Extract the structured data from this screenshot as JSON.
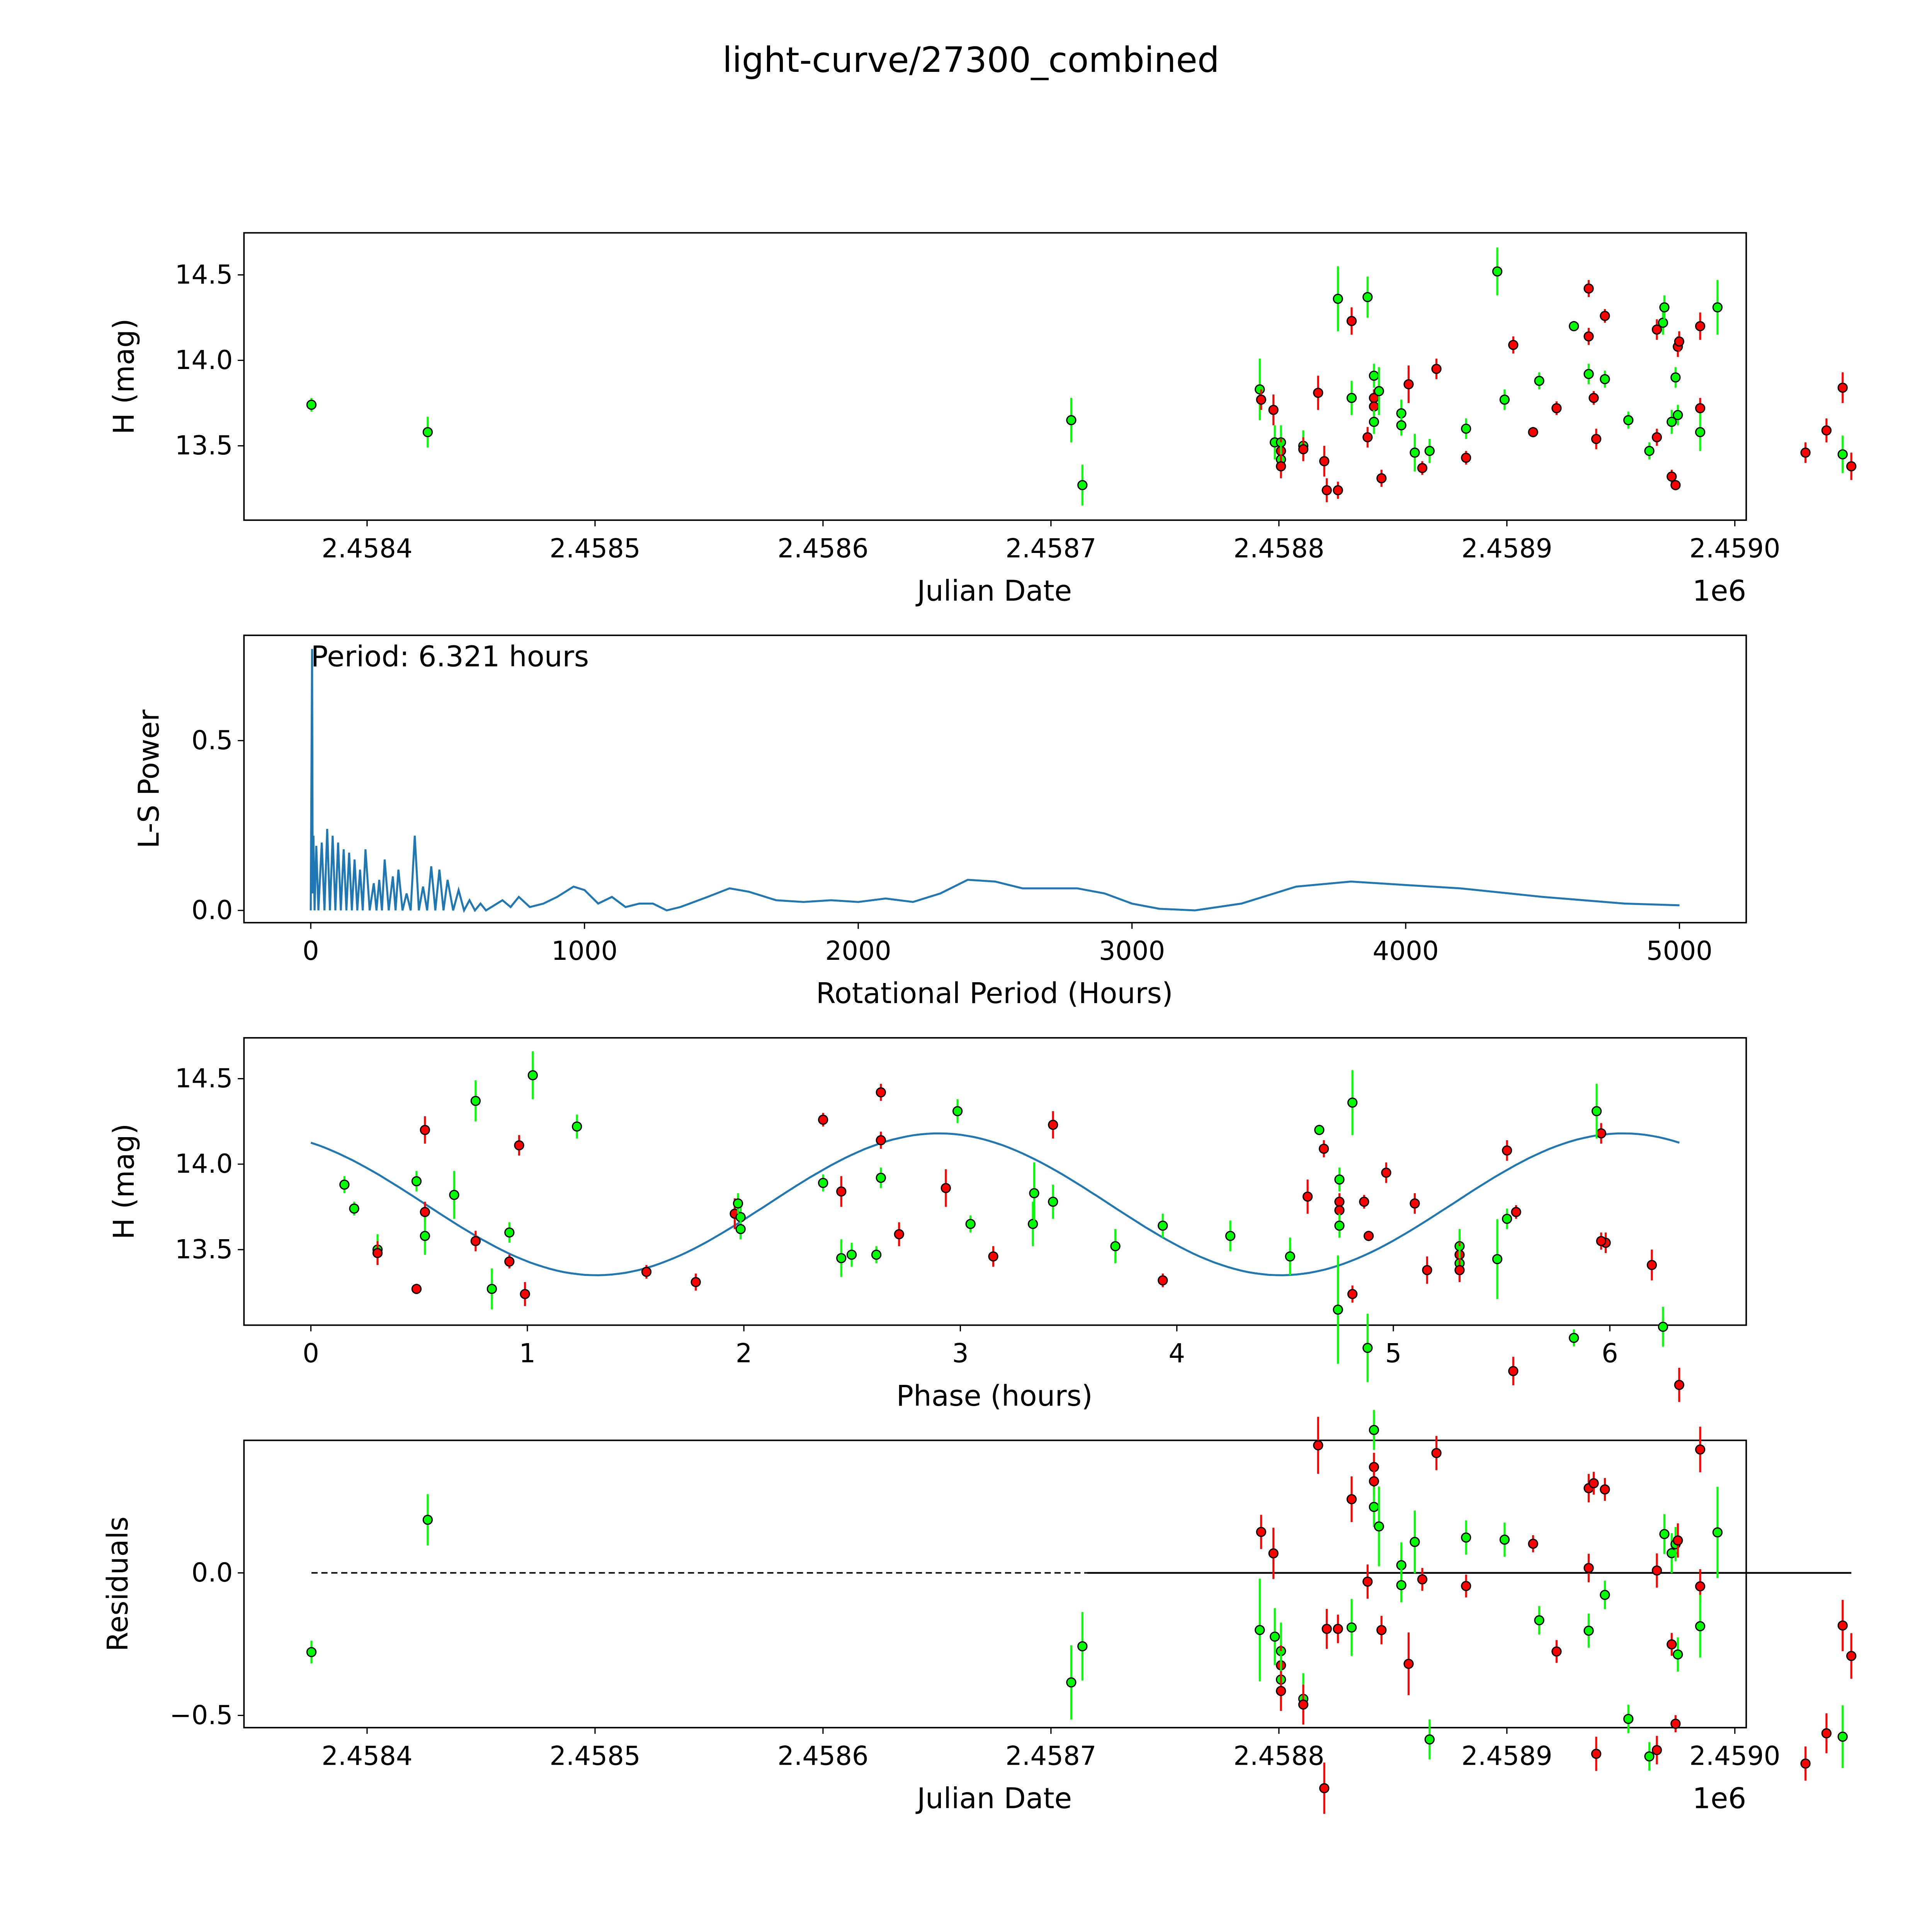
{
  "title": "light-curve/27300_combined",
  "colors": {
    "green": "#00ff00",
    "red": "#ff0000",
    "periodogram": "#1f77b4",
    "edge": "#000000"
  },
  "chart_data": [
    {
      "id": "lightcurve",
      "type": "scatter",
      "xlabel": "Julian Date",
      "ylabel": "H (mag)",
      "x_offset_label": "1e6",
      "xlim": [
        2458346,
        2459005
      ],
      "ylim": [
        13.065,
        14.746
      ],
      "xticks": [
        2458400,
        2458500,
        2458600,
        2458700,
        2458800,
        2458900,
        2459000
      ],
      "xtick_labels": [
        "2.4584",
        "2.4585",
        "2.4586",
        "2.4587",
        "2.4588",
        "2.4589",
        "2.4590"
      ],
      "yticks": [
        13.5,
        14.0,
        14.5
      ],
      "ytick_labels": [
        "13.5",
        "14.0",
        "14.5"
      ],
      "points": [
        [
          2458375.6,
          13.74,
          0.04,
          "g"
        ],
        [
          2458426.6,
          13.58,
          0.09,
          "g"
        ],
        [
          2458708.9,
          13.65,
          0.13,
          "g"
        ],
        [
          2458713.8,
          13.27,
          0.12,
          "g"
        ],
        [
          2458791.6,
          13.83,
          0.18,
          "g"
        ],
        [
          2458792.2,
          13.77,
          0.06,
          "r"
        ],
        [
          2458797.6,
          13.71,
          0.09,
          "r"
        ],
        [
          2458798.2,
          13.52,
          0.1,
          "g"
        ],
        [
          2458800.9,
          13.52,
          0.1,
          "g"
        ],
        [
          2458800.9,
          13.47,
          0.07,
          "r"
        ],
        [
          2458800.9,
          13.42,
          0.1,
          "g"
        ],
        [
          2458800.9,
          13.38,
          0.07,
          "r"
        ],
        [
          2458810.7,
          13.5,
          0.09,
          "g"
        ],
        [
          2458810.7,
          13.48,
          0.07,
          "r"
        ],
        [
          2458817.2,
          13.81,
          0.1,
          "r"
        ],
        [
          2458819.9,
          13.41,
          0.09,
          "r"
        ],
        [
          2458821.0,
          13.24,
          0.07,
          "r"
        ],
        [
          2458825.9,
          13.24,
          0.05,
          "r"
        ],
        [
          2458825.9,
          14.36,
          0.19,
          "g"
        ],
        [
          2458831.9,
          14.23,
          0.08,
          "r"
        ],
        [
          2458831.9,
          13.78,
          0.1,
          "g"
        ],
        [
          2458838.9,
          14.37,
          0.12,
          "g"
        ],
        [
          2458838.9,
          13.55,
          0.06,
          "r"
        ],
        [
          2458841.7,
          13.91,
          0.07,
          "g"
        ],
        [
          2458841.7,
          13.78,
          0.05,
          "r"
        ],
        [
          2458841.7,
          13.73,
          0.05,
          "r"
        ],
        [
          2458841.7,
          13.64,
          0.07,
          "g"
        ],
        [
          2458843.9,
          13.82,
          0.14,
          "g"
        ],
        [
          2458845.0,
          13.31,
          0.05,
          "r"
        ],
        [
          2458853.7,
          13.69,
          0.08,
          "g"
        ],
        [
          2458853.7,
          13.62,
          0.06,
          "g"
        ],
        [
          2458856.9,
          13.86,
          0.11,
          "r"
        ],
        [
          2458859.6,
          13.46,
          0.11,
          "g"
        ],
        [
          2458862.9,
          13.37,
          0.04,
          "r"
        ],
        [
          2458866.1,
          13.47,
          0.07,
          "g"
        ],
        [
          2458869.1,
          13.95,
          0.06,
          "r"
        ],
        [
          2458882.1,
          13.6,
          0.06,
          "g"
        ],
        [
          2458882.1,
          13.43,
          0.04,
          "r"
        ],
        [
          2458895.8,
          14.52,
          0.14,
          "g"
        ],
        [
          2458899.0,
          13.77,
          0.06,
          "g"
        ],
        [
          2458902.8,
          14.09,
          0.05,
          "r"
        ],
        [
          2458911.5,
          13.58,
          0.03,
          "r"
        ],
        [
          2458914.2,
          13.88,
          0.05,
          "g"
        ],
        [
          2458921.8,
          13.72,
          0.04,
          "r"
        ],
        [
          2458929.4,
          14.2,
          0.03,
          "g"
        ],
        [
          2458935.9,
          14.42,
          0.05,
          "r"
        ],
        [
          2458935.9,
          14.14,
          0.05,
          "r"
        ],
        [
          2458935.9,
          13.92,
          0.06,
          "g"
        ],
        [
          2458938.1,
          13.78,
          0.04,
          "r"
        ],
        [
          2458939.2,
          13.54,
          0.06,
          "r"
        ],
        [
          2458943.0,
          14.26,
          0.04,
          "r"
        ],
        [
          2458943.0,
          13.89,
          0.05,
          "g"
        ],
        [
          2458953.3,
          13.65,
          0.05,
          "g"
        ],
        [
          2458962.5,
          13.47,
          0.05,
          "g"
        ],
        [
          2458965.8,
          14.18,
          0.06,
          "r"
        ],
        [
          2458965.8,
          13.55,
          0.05,
          "r"
        ],
        [
          2458968.5,
          14.22,
          0.07,
          "g"
        ],
        [
          2458969.1,
          14.31,
          0.07,
          "g"
        ],
        [
          2458972.3,
          13.64,
          0.07,
          "g"
        ],
        [
          2458972.3,
          13.32,
          0.04,
          "r"
        ],
        [
          2458974.0,
          13.9,
          0.06,
          "g"
        ],
        [
          2458974.0,
          13.27,
          0.03,
          "r"
        ],
        [
          2458975.0,
          14.08,
          0.06,
          "r"
        ],
        [
          2458975.0,
          13.68,
          0.06,
          "g"
        ],
        [
          2458975.6,
          14.11,
          0.06,
          "r"
        ],
        [
          2458984.8,
          14.2,
          0.08,
          "r"
        ],
        [
          2458984.8,
          13.72,
          0.06,
          "r"
        ],
        [
          2458984.8,
          13.58,
          0.11,
          "g"
        ],
        [
          2458992.4,
          14.31,
          0.16,
          "g"
        ],
        [
          2459031.0,
          13.46,
          0.06,
          "r"
        ],
        [
          2459040.2,
          13.59,
          0.07,
          "r"
        ],
        [
          2459047.3,
          13.84,
          0.09,
          "r"
        ],
        [
          2459047.3,
          13.45,
          0.11,
          "g"
        ],
        [
          2459051.1,
          13.38,
          0.08,
          "r"
        ]
      ]
    },
    {
      "id": "periodogram",
      "type": "line",
      "annotation": "Period: 6.321 hours",
      "xlabel": "Rotational Period (Hours)",
      "ylabel": "L-S Power",
      "xlim": [
        -244,
        5244
      ],
      "ylim": [
        -0.036,
        0.81
      ],
      "xticks": [
        0,
        1000,
        2000,
        3000,
        4000,
        5000
      ],
      "xtick_labels": [
        "0",
        "1000",
        "2000",
        "3000",
        "4000",
        "5000"
      ],
      "yticks": [
        0.0,
        0.5
      ],
      "ytick_labels": [
        "0.0",
        "0.5"
      ],
      "points": [
        [
          0,
          0
        ],
        [
          3,
          0.5
        ],
        [
          5,
          0.77
        ],
        [
          7,
          0.05
        ],
        [
          10,
          0.22
        ],
        [
          14,
          0
        ],
        [
          20,
          0.19
        ],
        [
          28,
          0
        ],
        [
          40,
          0.2
        ],
        [
          50,
          0
        ],
        [
          60,
          0.24
        ],
        [
          70,
          0
        ],
        [
          80,
          0.22
        ],
        [
          90,
          0
        ],
        [
          100,
          0.2
        ],
        [
          110,
          0
        ],
        [
          120,
          0.18
        ],
        [
          130,
          0
        ],
        [
          140,
          0.17
        ],
        [
          150,
          0
        ],
        [
          160,
          0.15
        ],
        [
          170,
          0
        ],
        [
          180,
          0.12
        ],
        [
          190,
          0
        ],
        [
          200,
          0.18
        ],
        [
          215,
          0
        ],
        [
          230,
          0.08
        ],
        [
          240,
          0
        ],
        [
          250,
          0.09
        ],
        [
          260,
          0
        ],
        [
          270,
          0.15
        ],
        [
          285,
          0
        ],
        [
          300,
          0.1
        ],
        [
          310,
          0
        ],
        [
          320,
          0.12
        ],
        [
          335,
          0
        ],
        [
          350,
          0.05
        ],
        [
          365,
          0
        ],
        [
          380,
          0.22
        ],
        [
          395,
          0
        ],
        [
          410,
          0.07
        ],
        [
          425,
          0
        ],
        [
          440,
          0.13
        ],
        [
          455,
          0
        ],
        [
          470,
          0.12
        ],
        [
          485,
          0
        ],
        [
          500,
          0.09
        ],
        [
          520,
          0
        ],
        [
          540,
          0.06
        ],
        [
          560,
          0
        ],
        [
          580,
          0.03
        ],
        [
          600,
          0
        ],
        [
          620,
          0.02
        ],
        [
          640,
          0
        ],
        [
          660,
          0.01
        ],
        [
          700,
          0.03
        ],
        [
          730,
          0.01
        ],
        [
          760,
          0.04
        ],
        [
          800,
          0.01
        ],
        [
          850,
          0.02
        ],
        [
          900,
          0.04
        ],
        [
          960,
          0.07
        ],
        [
          1000,
          0.06
        ],
        [
          1050,
          0.02
        ],
        [
          1100,
          0.04
        ],
        [
          1150,
          0.01
        ],
        [
          1200,
          0.02
        ],
        [
          1250,
          0.02
        ],
        [
          1300,
          0.0
        ],
        [
          1350,
          0.01
        ],
        [
          1450,
          0.04
        ],
        [
          1530,
          0.065
        ],
        [
          1600,
          0.055
        ],
        [
          1700,
          0.03
        ],
        [
          1800,
          0.025
        ],
        [
          1900,
          0.03
        ],
        [
          2000,
          0.025
        ],
        [
          2100,
          0.035
        ],
        [
          2200,
          0.025
        ],
        [
          2300,
          0.05
        ],
        [
          2400,
          0.09
        ],
        [
          2500,
          0.085
        ],
        [
          2600,
          0.065
        ],
        [
          2800,
          0.065
        ],
        [
          2900,
          0.05
        ],
        [
          3000,
          0.02
        ],
        [
          3100,
          0.005
        ],
        [
          3230,
          0.0
        ],
        [
          3400,
          0.02
        ],
        [
          3600,
          0.07
        ],
        [
          3800,
          0.085
        ],
        [
          4000,
          0.075
        ],
        [
          4200,
          0.065
        ],
        [
          4500,
          0.04
        ],
        [
          4800,
          0.02
        ],
        [
          5000,
          0.015
        ]
      ]
    },
    {
      "id": "phased",
      "type": "scatter",
      "xlabel": "Phase (hours)",
      "ylabel": "H (mag)",
      "period_hours": 6.321,
      "model": {
        "mean": 13.765,
        "amplitude": 0.415,
        "peak_phase": 2.9,
        "cycle": 3.1605
      },
      "xlim": [
        -0.309,
        6.63
      ],
      "ylim": [
        13.058,
        14.739
      ],
      "xticks": [
        0,
        1,
        2,
        3,
        4,
        5,
        6
      ],
      "xtick_labels": [
        "0",
        "1",
        "2",
        "3",
        "4",
        "5",
        "6"
      ],
      "yticks": [
        13.5,
        14.0,
        14.5
      ],
      "ytick_labels": [
        "13.5",
        "14.0",
        "14.5"
      ]
    },
    {
      "id": "residuals",
      "type": "scatter",
      "xlabel": "Julian Date",
      "ylabel": "Residuals",
      "x_offset_label": "1e6",
      "xlim": [
        2458346,
        2459005
      ],
      "ylim": [
        -0.543,
        0.465
      ],
      "xticks": [
        2458400,
        2458500,
        2458600,
        2458700,
        2458800,
        2458900,
        2459000
      ],
      "xtick_labels": [
        "2.4584",
        "2.4585",
        "2.4586",
        "2.4587",
        "2.4588",
        "2.4589",
        "2.4590"
      ],
      "yticks": [
        -0.5,
        0.0
      ],
      "ytick_labels": [
        "−0.5",
        "0.0"
      ]
    }
  ]
}
